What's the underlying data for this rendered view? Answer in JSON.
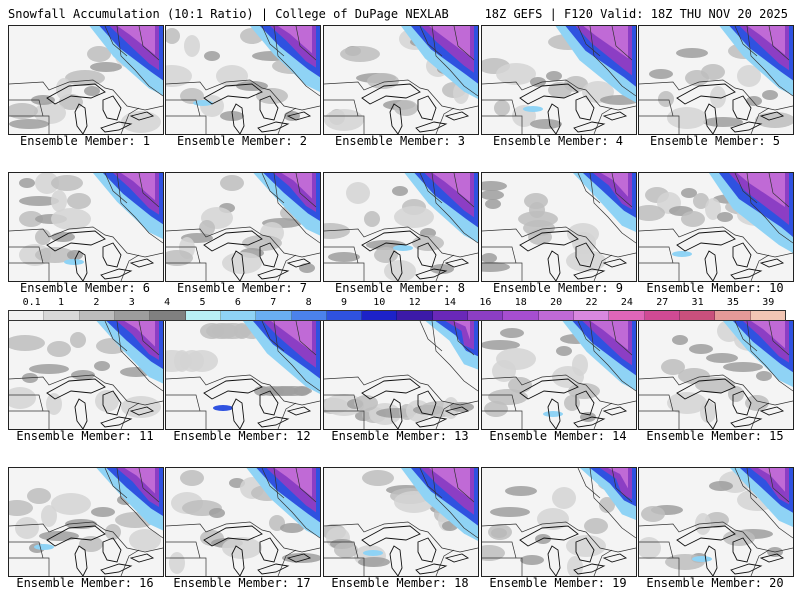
{
  "header": {
    "left": "Snowfall Accumulation (10:1 Ratio) | College of DuPage NEXLAB",
    "right": "18Z GEFS | F120 Valid: 18Z THU NOV 20 2025"
  },
  "legend": {
    "labels": [
      "0.1",
      "1",
      "2",
      "3",
      "4",
      "5",
      "6",
      "7",
      "8",
      "9",
      "10",
      "12",
      "14",
      "16",
      "18",
      "20",
      "22",
      "24",
      "27",
      "31",
      "35",
      "39"
    ],
    "colors": [
      "#f2f2f2",
      "#d8d8d8",
      "#bdbdbd",
      "#9d9d9d",
      "#808080",
      "#b8f0f5",
      "#8fd3f5",
      "#6aaef2",
      "#4b82ec",
      "#2f52e0",
      "#1c22c8",
      "#3c1aa8",
      "#6a28b8",
      "#8c3ec4",
      "#a64ed0",
      "#c06ad6",
      "#d988e0",
      "#e066b8",
      "#d04a94",
      "#c8507c",
      "#e49a98",
      "#f2c6b4"
    ]
  },
  "members": [
    {
      "label": "Ensemble Member: 1",
      "snow": 0.85
    },
    {
      "label": "Ensemble Member: 2",
      "snow": 0.8
    },
    {
      "label": "Ensemble Member: 3",
      "snow": 0.9
    },
    {
      "label": "Ensemble Member: 4",
      "snow": 0.95
    },
    {
      "label": "Ensemble Member: 5",
      "snow": 0.85
    },
    {
      "label": "Ensemble Member: 6",
      "snow": 0.8
    },
    {
      "label": "Ensemble Member: 7",
      "snow": 0.75
    },
    {
      "label": "Ensemble Member: 8",
      "snow": 0.85
    },
    {
      "label": "Ensemble Member: 9",
      "snow": 0.7
    },
    {
      "label": "Ensemble Member: 10",
      "snow": 1.0
    },
    {
      "label": "Ensemble Member: 11",
      "snow": 0.75
    },
    {
      "label": "Ensemble Member: 12",
      "snow": 0.9
    },
    {
      "label": "Ensemble Member: 13",
      "snow": 0.55
    },
    {
      "label": "Ensemble Member: 14",
      "snow": 0.85
    },
    {
      "label": "Ensemble Member: 15",
      "snow": 0.8
    },
    {
      "label": "Ensemble Member: 16",
      "snow": 0.75
    },
    {
      "label": "Ensemble Member: 17",
      "snow": 0.85
    },
    {
      "label": "Ensemble Member: 18",
      "snow": 0.9
    },
    {
      "label": "Ensemble Member: 19",
      "snow": 0.6
    },
    {
      "label": "Ensemble Member: 20",
      "snow": 0.7
    }
  ]
}
